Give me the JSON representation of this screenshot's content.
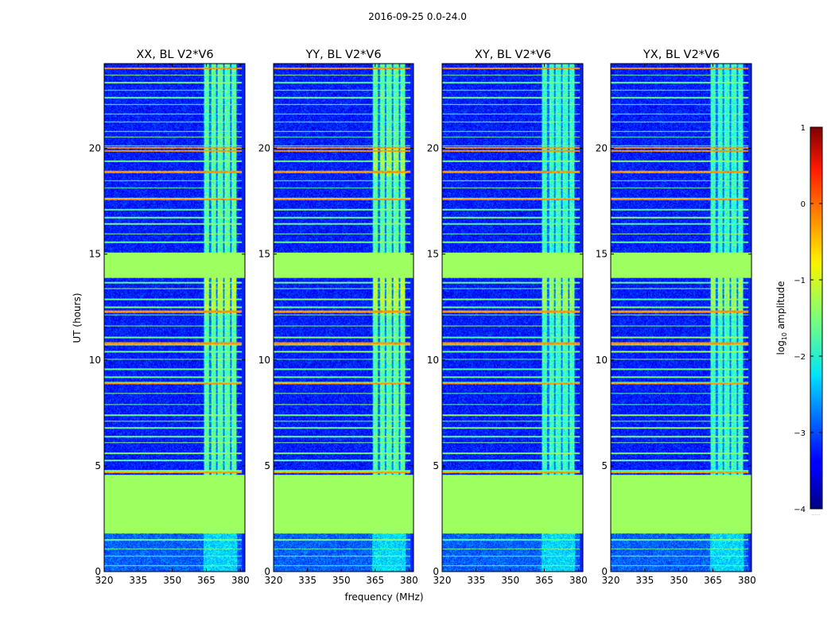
{
  "chart_data": {
    "type": "heatmap",
    "suptitle": "2016-09-25 0.0-24.0",
    "panels": [
      {
        "title": "XX, BL V2*V6"
      },
      {
        "title": "YY, BL V2*V6"
      },
      {
        "title": "XY, BL V2*V6"
      },
      {
        "title": "YX, BL V2*V6"
      }
    ],
    "xlabel": "frequency (MHz)",
    "ylabel": "UT (hours)",
    "xlim": [
      320,
      382
    ],
    "ylim": [
      0,
      24
    ],
    "xticks": [
      "320",
      "335",
      "350",
      "365",
      "380"
    ],
    "yticks": [
      "0",
      "5",
      "10",
      "15",
      "20"
    ],
    "flagged_ut_ranges": [
      [
        1.8,
        4.6
      ],
      [
        13.9,
        15.1
      ]
    ],
    "flag_level": -1.35,
    "rfi_band_mhz": [
      363.5,
      378.5
    ],
    "colorbar": {
      "label_main": "log",
      "label_sub": "10",
      "label_suffix": " amplitude",
      "ticks": [
        "1",
        "0",
        "−1",
        "−2",
        "−3",
        "−4"
      ],
      "range": [
        -4,
        1
      ],
      "colormap": "jet",
      "extra_label": "......"
    }
  }
}
